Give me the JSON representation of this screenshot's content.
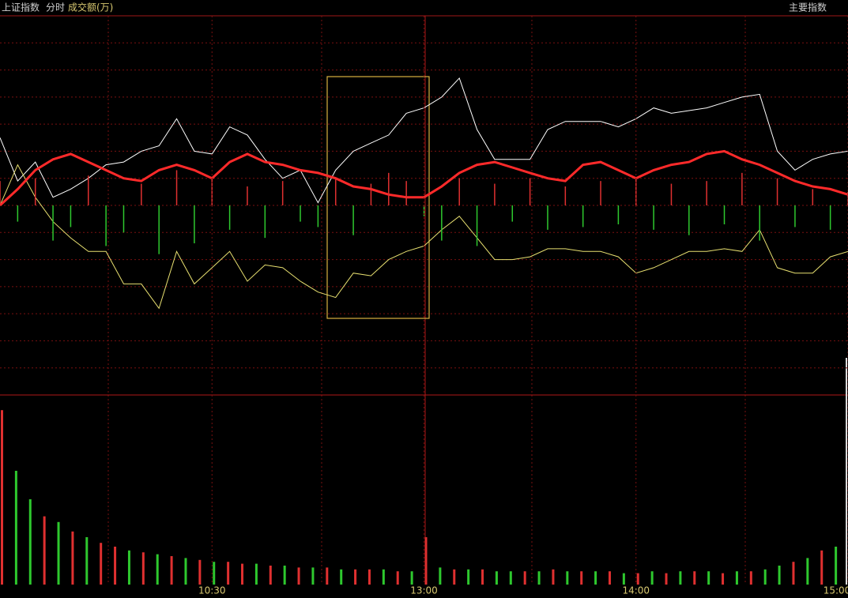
{
  "header": {
    "title": "上证指数",
    "mode": "分时",
    "indicator": "成交额(万)",
    "menu": "主要指数"
  },
  "chart_data": [
    {
      "type": "line",
      "xlim": [
        0,
        240
      ],
      "ylim": [
        -7,
        7
      ],
      "yticks": [
        -6,
        -5,
        -4,
        -3,
        -2,
        -1,
        0,
        1,
        2,
        3,
        4,
        5,
        6
      ],
      "grid": true,
      "x": [
        0,
        5,
        10,
        15,
        20,
        25,
        30,
        35,
        40,
        45,
        50,
        55,
        60,
        65,
        70,
        75,
        80,
        85,
        90,
        95,
        100,
        105,
        110,
        115,
        120,
        125,
        130,
        135,
        140,
        145,
        150,
        155,
        160,
        165,
        170,
        175,
        180,
        185,
        190,
        195,
        200,
        205,
        210,
        215,
        220,
        225,
        230,
        235,
        240
      ],
      "series": [
        {
          "color": "#ffffff",
          "values": [
            2.5,
            0.9,
            1.6,
            0.3,
            0.6,
            1.0,
            1.5,
            1.6,
            2.0,
            2.2,
            3.2,
            2.0,
            1.9,
            2.9,
            2.6,
            1.7,
            1.0,
            1.3,
            0.1,
            1.3,
            2.0,
            2.3,
            2.6,
            3.4,
            3.6,
            4.0,
            4.7,
            2.8,
            1.7,
            1.7,
            1.7,
            2.8,
            3.1,
            3.1,
            3.1,
            2.9,
            3.2,
            3.6,
            3.4,
            3.5,
            3.6,
            3.8,
            4.0,
            4.1,
            2.0,
            1.3,
            1.7,
            1.9,
            2.0
          ]
        },
        {
          "color": "#e8e070",
          "values": [
            0,
            1.5,
            0.3,
            -0.6,
            -1.2,
            -1.7,
            -1.7,
            -2.9,
            -2.9,
            -3.8,
            -1.7,
            -2.9,
            -2.3,
            -1.7,
            -2.8,
            -2.2,
            -2.3,
            -2.8,
            -3.2,
            -3.4,
            -2.5,
            -2.6,
            -2.0,
            -1.7,
            -1.5,
            -0.9,
            -0.4,
            -1.2,
            -2.0,
            -2.0,
            -1.9,
            -1.6,
            -1.6,
            -1.7,
            -1.7,
            -1.9,
            -2.5,
            -2.3,
            -2.0,
            -1.7,
            -1.7,
            -1.6,
            -1.7,
            -0.9,
            -2.3,
            -2.5,
            -2.5,
            -1.9,
            -1.7
          ]
        },
        {
          "color": "#ff2a2a",
          "values": [
            0,
            0.6,
            1.3,
            1.7,
            1.9,
            1.6,
            1.3,
            1.0,
            0.9,
            1.3,
            1.5,
            1.3,
            1.0,
            1.6,
            1.9,
            1.6,
            1.5,
            1.3,
            1.2,
            1.0,
            0.7,
            0.6,
            0.4,
            0.3,
            0.3,
            0.7,
            1.2,
            1.5,
            1.6,
            1.4,
            1.2,
            1.0,
            0.9,
            1.5,
            1.6,
            1.3,
            1.0,
            1.3,
            1.5,
            1.6,
            1.9,
            2.0,
            1.7,
            1.5,
            1.2,
            0.9,
            0.7,
            0.6,
            0.4
          ]
        },
        {
          "type": "bar",
          "up_color": "#e03030",
          "down_color": "#2ec82e",
          "values": [
            0.9,
            -0.6,
            1.0,
            -1.3,
            -0.8,
            1.1,
            -1.5,
            -1.0,
            0.8,
            -1.8,
            1.3,
            -1.4,
            1.0,
            -0.9,
            0.7,
            -1.2,
            0.9,
            -0.6,
            -0.8,
            1.0,
            -1.1,
            0.8,
            1.2,
            0.9,
            -0.4,
            -1.3,
            1.0,
            -1.5,
            0.8,
            -0.6,
            1.0,
            -0.9,
            0.7,
            -0.8,
            0.9,
            -0.7,
            1.0,
            -0.9,
            0.8,
            -1.1,
            0.9,
            -0.7,
            1.2,
            -1.3,
            1.0,
            -0.8,
            0.6,
            -0.9,
            0.5
          ]
        }
      ]
    },
    {
      "type": "bar",
      "xlim": [
        0,
        240
      ],
      "ylim": [
        0,
        100
      ],
      "xticks": [
        {
          "value": 60,
          "label": "10:30"
        },
        {
          "value": 120,
          "label": "13:00"
        },
        {
          "value": 180,
          "label": "14:00"
        },
        {
          "value": 240,
          "label": "15:00"
        }
      ],
      "x": [
        0,
        4,
        8,
        12,
        16,
        20,
        24,
        28,
        32,
        36,
        40,
        44,
        48,
        52,
        56,
        60,
        64,
        68,
        72,
        76,
        80,
        84,
        88,
        92,
        96,
        100,
        104,
        108,
        112,
        116,
        120,
        124,
        128,
        132,
        136,
        140,
        144,
        148,
        152,
        156,
        160,
        164,
        168,
        172,
        176,
        180,
        184,
        188,
        192,
        196,
        200,
        204,
        208,
        212,
        216,
        220,
        224,
        228,
        232,
        236
      ],
      "values": [
        92,
        60,
        45,
        36,
        33,
        28,
        25,
        22,
        20,
        18,
        17,
        16,
        15,
        14,
        13,
        12,
        12,
        11,
        11,
        10,
        10,
        9,
        9,
        9,
        8,
        8,
        8,
        8,
        7,
        7,
        25,
        9,
        8,
        8,
        8,
        7,
        7,
        7,
        7,
        8,
        7,
        7,
        7,
        7,
        6,
        6,
        7,
        6,
        7,
        7,
        7,
        6,
        7,
        7,
        8,
        10,
        12,
        14,
        18,
        20
      ],
      "colors": [
        "#e03030",
        "#2ec82e",
        "#2ec82e",
        "#e03030",
        "#2ec82e",
        "#e03030",
        "#2ec82e",
        "#e03030",
        "#e03030",
        "#2ec82e",
        "#e03030",
        "#2ec82e",
        "#e03030",
        "#2ec82e",
        "#e03030",
        "#2ec82e",
        "#e03030",
        "#e03030",
        "#2ec82e",
        "#e03030",
        "#2ec82e",
        "#e03030",
        "#2ec82e",
        "#e03030",
        "#2ec82e",
        "#e03030",
        "#e03030",
        "#2ec82e",
        "#e03030",
        "#2ec82e",
        "#e03030",
        "#2ec82e",
        "#e03030",
        "#2ec82e",
        "#e03030",
        "#2ec82e",
        "#2ec82e",
        "#e03030",
        "#2ec82e",
        "#e03030",
        "#2ec82e",
        "#e03030",
        "#2ec82e",
        "#e03030",
        "#2ec82e",
        "#e03030",
        "#2ec82e",
        "#e03030",
        "#2ec82e",
        "#e03030",
        "#2ec82e",
        "#e03030",
        "#2ec82e",
        "#e03030",
        "#2ec82e",
        "#2ec82e",
        "#e03030",
        "#2ec82e",
        "#e03030",
        "#2ec82e"
      ]
    }
  ]
}
